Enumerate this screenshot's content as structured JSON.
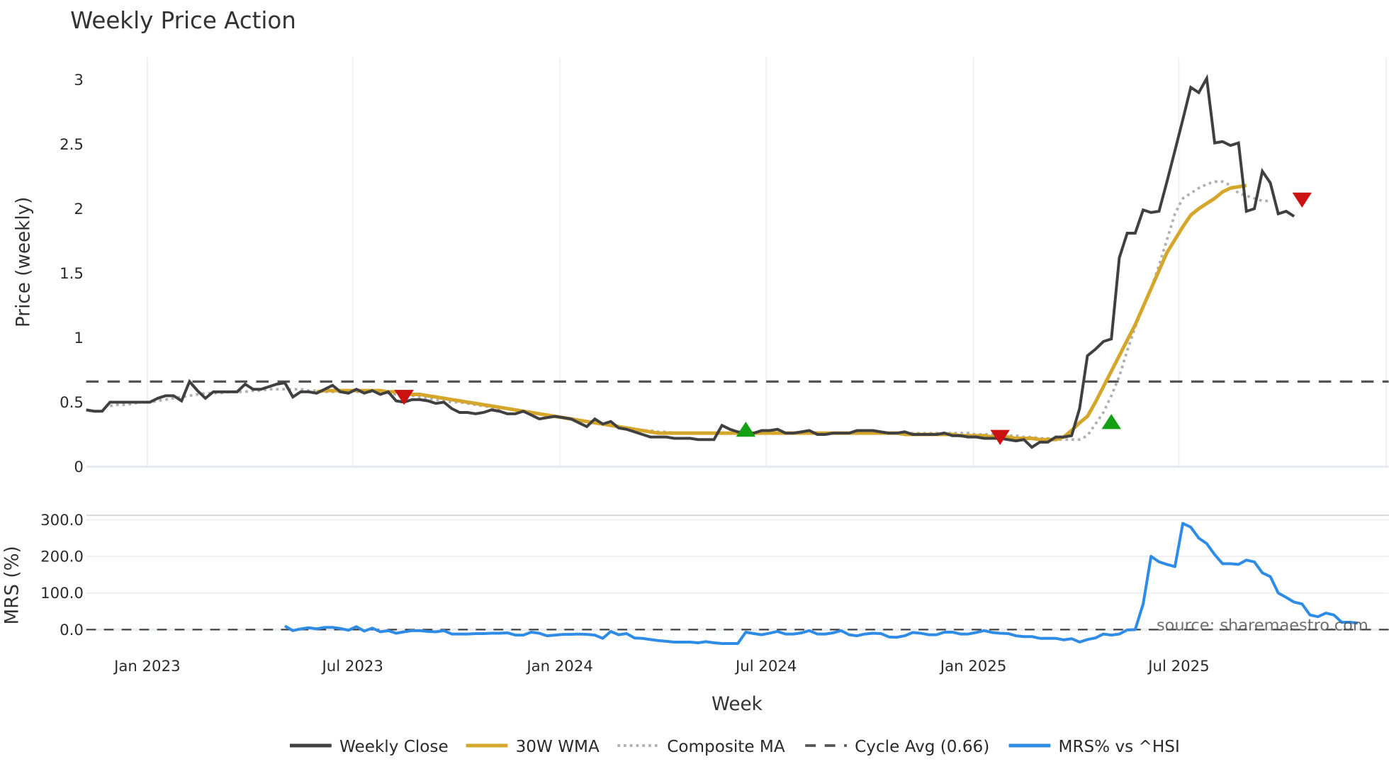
{
  "title": "Weekly Price Action",
  "price_panel": {
    "ylabel": "Price (weekly)",
    "yticks": [
      {
        "label": "0",
        "value": 0
      },
      {
        "label": "0.5",
        "value": 0.5
      },
      {
        "label": "1",
        "value": 1
      },
      {
        "label": "1.5",
        "value": 1.5
      },
      {
        "label": "2",
        "value": 2
      },
      {
        "label": "2.5",
        "value": 2.5
      },
      {
        "label": "3",
        "value": 3
      }
    ]
  },
  "mrs_panel": {
    "ylabel": "MRS (%)",
    "yticks": [
      {
        "label": "0.0",
        "value": 0
      },
      {
        "label": "100.0",
        "value": 100
      },
      {
        "label": "200.0",
        "value": 200
      },
      {
        "label": "300.0",
        "value": 300
      }
    ]
  },
  "xaxis": {
    "label": "Week",
    "ticks": [
      "Jan 2023",
      "Jul 2023",
      "Jan 2024",
      "Jul 2024",
      "Jan 2025",
      "Jul 2025"
    ]
  },
  "legend": [
    {
      "label": "Weekly Close",
      "color": "#404040",
      "style": "solid"
    },
    {
      "label": "30W WMA",
      "color": "#d4a72c",
      "style": "solid"
    },
    {
      "label": "Composite MA",
      "color": "#b0b0b0",
      "style": "dotted"
    },
    {
      "label": "Cycle Avg (0.66)",
      "color": "#555555",
      "style": "dashed"
    },
    {
      "label": "MRS% vs ^HSI",
      "color": "#2e8be6",
      "style": "solid"
    }
  ],
  "source": "source: sharemaestro.com",
  "colors": {
    "close": "#404040",
    "wma": "#d4a72c",
    "composite": "#b0b0b0",
    "cycle": "#555555",
    "mrs": "#2e8be6",
    "buy": "#13a013",
    "sell": "#cc1111",
    "grid": "#eceff4"
  },
  "chart_data": {
    "type": "line",
    "title": "Weekly Price Action",
    "xlabel": "Week",
    "x_start": "2022-11-07",
    "x_step": "1 week",
    "panels": [
      {
        "name": "price",
        "ylabel": "Price (weekly)",
        "ylim": [
          0,
          3.1
        ],
        "series": [
          {
            "name": "Weekly Close",
            "start_index": 0,
            "values": [
              0.44,
              0.43,
              0.43,
              0.5,
              0.5,
              0.5,
              0.5,
              0.5,
              0.5,
              0.53,
              0.55,
              0.55,
              0.51,
              0.66,
              0.59,
              0.53,
              0.58,
              0.58,
              0.58,
              0.58,
              0.64,
              0.6,
              0.6,
              0.62,
              0.64,
              0.65,
              0.54,
              0.58,
              0.58,
              0.57,
              0.6,
              0.63,
              0.58,
              0.57,
              0.6,
              0.57,
              0.59,
              0.56,
              0.58,
              0.51,
              0.5,
              0.52,
              0.52,
              0.51,
              0.49,
              0.5,
              0.45,
              0.42,
              0.42,
              0.41,
              0.42,
              0.44,
              0.43,
              0.41,
              0.41,
              0.43,
              0.4,
              0.37,
              0.38,
              0.39,
              0.38,
              0.37,
              0.34,
              0.31,
              0.37,
              0.33,
              0.35,
              0.3,
              0.29,
              0.27,
              0.25,
              0.23,
              0.23,
              0.23,
              0.22,
              0.22,
              0.22,
              0.21,
              0.21,
              0.21,
              0.32,
              0.29,
              0.27,
              0.26,
              0.26,
              0.28,
              0.28,
              0.29,
              0.26,
              0.26,
              0.27,
              0.28,
              0.25,
              0.25,
              0.26,
              0.26,
              0.26,
              0.28,
              0.28,
              0.28,
              0.27,
              0.26,
              0.26,
              0.27,
              0.25,
              0.25,
              0.25,
              0.25,
              0.26,
              0.24,
              0.24,
              0.23,
              0.23,
              0.22,
              0.22,
              0.22,
              0.21,
              0.2,
              0.21,
              0.15,
              0.19,
              0.19,
              0.23,
              0.23,
              0.24,
              0.45,
              0.86,
              0.91,
              0.97,
              0.99,
              1.62,
              1.81,
              1.81,
              1.99,
              1.97,
              1.98,
              2.21,
              2.45,
              2.69,
              2.94,
              2.9,
              3.01,
              2.51,
              2.52,
              2.49,
              2.51,
              1.98,
              2.0,
              2.29,
              2.2,
              1.96,
              1.98,
              1.94
            ]
          },
          {
            "name": "30W WMA",
            "start_index": 29,
            "values": [
              0.58,
              0.59,
              0.59,
              0.59,
              0.59,
              0.59,
              0.59,
              0.59,
              0.59,
              0.58,
              0.58,
              0.57,
              0.56,
              0.56,
              0.55,
              0.54,
              0.53,
              0.52,
              0.51,
              0.5,
              0.49,
              0.48,
              0.47,
              0.46,
              0.45,
              0.44,
              0.43,
              0.42,
              0.41,
              0.4,
              0.39,
              0.38,
              0.37,
              0.36,
              0.35,
              0.34,
              0.33,
              0.32,
              0.31,
              0.3,
              0.29,
              0.28,
              0.27,
              0.26,
              0.26,
              0.26,
              0.26,
              0.26,
              0.26,
              0.26,
              0.26,
              0.26,
              0.26,
              0.26,
              0.26,
              0.26,
              0.26,
              0.26,
              0.26,
              0.26,
              0.26,
              0.26,
              0.26,
              0.26,
              0.26,
              0.26,
              0.26,
              0.26,
              0.26,
              0.26,
              0.26,
              0.26,
              0.26,
              0.26,
              0.25,
              0.25,
              0.25,
              0.25,
              0.25,
              0.25,
              0.25,
              0.24,
              0.24,
              0.24,
              0.24,
              0.23,
              0.23,
              0.23,
              0.22,
              0.22,
              0.22,
              0.21,
              0.21,
              0.21,
              0.23,
              0.28,
              0.34,
              0.39,
              0.5,
              0.62,
              0.74,
              0.86,
              0.98,
              1.1,
              1.24,
              1.38,
              1.52,
              1.66,
              1.76,
              1.86,
              1.95,
              2.0,
              2.04,
              2.08,
              2.13,
              2.16,
              2.17,
              2.18
            ]
          },
          {
            "name": "Composite MA",
            "start_index": 3,
            "values": [
              0.47,
              0.48,
              0.48,
              0.49,
              0.5,
              0.5,
              0.51,
              0.52,
              0.53,
              0.54,
              0.55,
              0.56,
              0.57,
              0.57,
              0.57,
              0.58,
              0.58,
              0.58,
              0.59,
              0.59,
              0.6,
              0.6,
              0.6,
              0.6,
              0.6,
              0.59,
              0.59,
              0.58,
              0.58,
              0.58,
              0.58,
              0.58,
              0.58,
              0.58,
              0.58,
              0.57,
              0.56,
              0.55,
              0.55,
              0.54,
              0.53,
              0.52,
              0.51,
              0.5,
              0.5,
              0.49,
              0.48,
              0.47,
              0.46,
              0.45,
              0.45,
              0.44,
              0.43,
              0.42,
              0.41,
              0.4,
              0.39,
              0.38,
              0.37,
              0.36,
              0.35,
              0.34,
              0.33,
              0.32,
              0.31,
              0.3,
              0.29,
              0.28,
              0.28,
              0.27,
              0.27,
              0.26,
              0.26,
              0.26,
              0.26,
              0.26,
              0.26,
              0.26,
              0.26,
              0.26,
              0.26,
              0.26,
              0.26,
              0.26,
              0.26,
              0.26,
              0.26,
              0.26,
              0.26,
              0.26,
              0.26,
              0.26,
              0.26,
              0.26,
              0.26,
              0.26,
              0.26,
              0.26,
              0.26,
              0.26,
              0.26,
              0.26,
              0.26,
              0.26,
              0.26,
              0.26,
              0.26,
              0.26,
              0.26,
              0.25,
              0.25,
              0.25,
              0.25,
              0.24,
              0.24,
              0.23,
              0.23,
              0.22,
              0.22,
              0.21,
              0.21,
              0.21,
              0.21,
              0.24,
              0.33,
              0.42,
              0.55,
              0.7,
              0.9,
              1.08,
              1.24,
              1.38,
              1.56,
              1.76,
              1.96,
              2.08,
              2.12,
              2.16,
              2.19,
              2.21,
              2.21,
              2.18,
              2.12,
              2.1,
              2.08,
              2.06,
              2.06
            ]
          },
          {
            "name": "Cycle Avg (0.66)",
            "constant": 0.66
          }
        ],
        "markers": [
          {
            "type": "sell",
            "index": 40,
            "value": 0.54
          },
          {
            "type": "buy",
            "index": 83,
            "value": 0.28
          },
          {
            "type": "sell",
            "index": 115,
            "value": 0.23
          },
          {
            "type": "buy",
            "index": 129,
            "value": 0.34
          },
          {
            "type": "sell",
            "index": 153,
            "value": 2.07
          }
        ]
      },
      {
        "name": "mrs",
        "ylabel": "MRS (%)",
        "ylim": [
          -40,
          310
        ],
        "series": [
          {
            "name": "MRS% vs ^HSI",
            "start_index": 25,
            "values": [
              10,
              -3,
              2,
              5,
              2,
              6,
              6,
              3,
              -2,
              8,
              -4,
              4,
              -6,
              -3,
              -10,
              -6,
              -3,
              -3,
              -5,
              -6,
              -3,
              -12,
              -12,
              -12,
              -11,
              -11,
              -10,
              -10,
              -9,
              -15,
              -15,
              -7,
              -10,
              -17,
              -15,
              -13,
              -13,
              -12,
              -13,
              -15,
              -24,
              -5,
              -14,
              -11,
              -23,
              -24,
              -27,
              -30,
              -32,
              -34,
              -34,
              -34,
              -36,
              -33,
              -36,
              -38,
              -38,
              -38,
              -7,
              -11,
              -14,
              -10,
              -5,
              -12,
              -12,
              -9,
              -3,
              -12,
              -12,
              -9,
              -3,
              -14,
              -17,
              -12,
              -10,
              -11,
              -20,
              -21,
              -17,
              -8,
              -10,
              -14,
              -14,
              -7,
              -7,
              -12,
              -12,
              -8,
              -3,
              -8,
              -10,
              -11,
              -17,
              -19,
              -19,
              -24,
              -24,
              -24,
              -28,
              -25,
              -34,
              -27,
              -23,
              -12,
              -15,
              -12,
              -1,
              0,
              70,
              200,
              185,
              178,
              172,
              290,
              280,
              250,
              235,
              205,
              180,
              180,
              178,
              190,
              185,
              155,
              145,
              100,
              88,
              75,
              70,
              40,
              35,
              45,
              40,
              20,
              20,
              18
            ]
          }
        ],
        "reference_line": {
          "name": "zero",
          "value": 0,
          "style": "dashed"
        }
      }
    ],
    "xticks": [
      "Jan 2023",
      "Jul 2023",
      "Jan 2024",
      "Jul 2024",
      "Jan 2025",
      "Jul 2025"
    ],
    "legend_position": "bottom",
    "grid": true
  }
}
